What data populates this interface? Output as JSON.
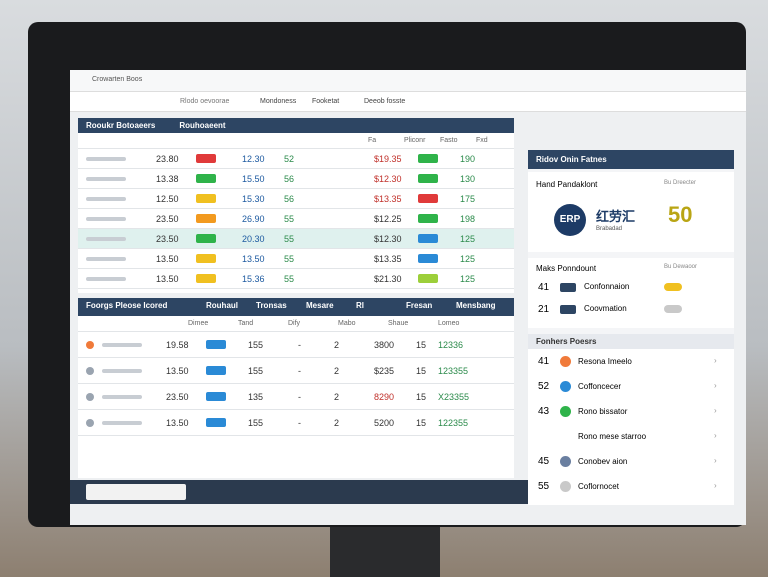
{
  "browser": {
    "tab": "Crowarten Boos",
    "address": "Rlodo oevoorae",
    "toolbar": [
      "Mondoness",
      "Fooketat",
      "Deeob fosste"
    ]
  },
  "top_table": {
    "title": "Rooukr Botoaeers",
    "subtitle": "Rouhoaeent",
    "headers": [
      "Fa",
      "Pliconr",
      "Fasto",
      "Fxd"
    ],
    "rows": [
      {
        "a": "23.80",
        "badge1": "#e03a3a",
        "b": "12.30",
        "c": "52",
        "price": "$19.35",
        "badge2": "#2fb34a",
        "count": "190"
      },
      {
        "a": "13.38",
        "badge1": "#2fb34a",
        "b": "15.50",
        "c": "56",
        "price": "$12.30",
        "badge2": "#2fb34a",
        "count": "130"
      },
      {
        "a": "12.50",
        "badge1": "#f0c020",
        "b": "15.30",
        "c": "56",
        "price": "$13.35",
        "badge2": "#e03a3a",
        "count": "175"
      },
      {
        "a": "23.50",
        "badge1": "#f29a1f",
        "b": "26.90",
        "c": "55",
        "price": "$12.25",
        "badge2": "#2fb34a",
        "count": "198"
      },
      {
        "a": "23.50",
        "badge1": "#2fb34a",
        "b": "20.30",
        "c": "55",
        "price": "$12.30",
        "badge2": "#2a8ad6",
        "count": "125"
      },
      {
        "a": "13.50",
        "badge1": "#f0c020",
        "b": "13.50",
        "c": "55",
        "price": "$13.35",
        "badge2": "#2a8ad6",
        "count": "125"
      },
      {
        "a": "13.50",
        "badge1": "#f0c020",
        "b": "15.36",
        "c": "55",
        "price": "$21.30",
        "badge2": "#9ccf3a",
        "count": "125"
      }
    ]
  },
  "bottom_table": {
    "title": "Foorgs Pleose Icored",
    "headers": [
      "Rouhaul",
      "Tronsas",
      "Mesare",
      "Rl",
      "Fresan",
      "Mensbang"
    ],
    "subheaders": [
      "Dimee",
      "Tand",
      "Dify",
      "Mabo",
      "Shaue",
      "Lomeo"
    ],
    "rows": [
      {
        "a": "19.58",
        "b": "155",
        "c": "-",
        "d": "2",
        "e": "3800",
        "f": "15",
        "g": "12336"
      },
      {
        "a": "13.50",
        "b": "155",
        "c": "-",
        "d": "2",
        "e": "$235",
        "f": "15",
        "g": "123355"
      },
      {
        "a": "23.50",
        "b": "135",
        "c": "-",
        "d": "2",
        "e": "8290",
        "f": "15",
        "g": "X23355"
      },
      {
        "a": "13.50",
        "b": "155",
        "c": "-",
        "d": "2",
        "e": "5200",
        "f": "15",
        "g": "122355"
      }
    ]
  },
  "side_panel": {
    "title": "Ridov Onin Fatnes",
    "card": {
      "label": "Hand Pandaklont",
      "link": "Bu Dreecter",
      "logo": "ERP",
      "name": "红劳汇",
      "caption": "Brabadad",
      "value": "50"
    },
    "section": {
      "label": "Maks Ponndount",
      "link": "Bu Dewaoor",
      "items": [
        {
          "num": "41",
          "text": "Confonnaion",
          "color": "#f0c020"
        },
        {
          "num": "21",
          "text": "Coovmation",
          "color": "#c9c9c9"
        }
      ]
    },
    "list": {
      "title": "Fonhers Poesrs",
      "items": [
        {
          "num": "41",
          "text": "Resona Imeelo",
          "color": "#f07a3a"
        },
        {
          "num": "52",
          "text": "Coffoncecer",
          "color": "#2a8ad6"
        },
        {
          "num": "43",
          "text": "Rono bissator",
          "color": "#2fb34a"
        },
        {
          "num": "",
          "text": "Rono mese starroo",
          "color": ""
        },
        {
          "num": "45",
          "text": "Conobev aion",
          "color": "#6a7fa0"
        },
        {
          "num": "55",
          "text": "Coflornocet",
          "color": "#c9c9c9"
        }
      ]
    }
  }
}
